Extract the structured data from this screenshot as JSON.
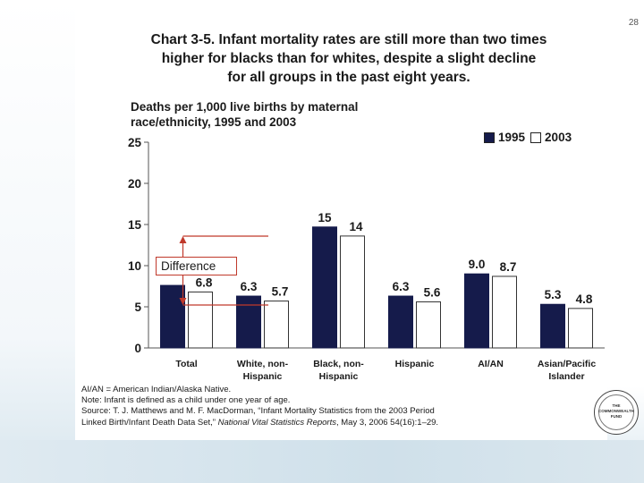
{
  "page_number": "28",
  "title_lines": [
    "Chart 3-5. Infant mortality rates are still more than two times",
    "higher for blacks than for whites, despite a slight decline",
    "for all groups in the past eight years."
  ],
  "subtitle_lines": [
    "Deaths per 1,000 live births by maternal",
    "race/ethnicity, 1995 and 2003"
  ],
  "annotation": {
    "label": "Difference"
  },
  "footnotes": {
    "abbrev": "AI/AN = American Indian/Alaska Native.",
    "note": "Note: Infant is defined as a child under one year of age.",
    "source_line1": "Source: T. J. Matthews and M. F. MacDorman, “Infant Mortality Statistics from the 2003 Period",
    "source_line2_pre": "Linked Birth/Infant Death Data Set,” ",
    "source_line2_journal": "National Vital Statistics Reports",
    "source_line2_post": ", May 3, 2006 54(16):1–29."
  },
  "seal_text": [
    "THE",
    "COMMONWEALTH",
    "FUND"
  ],
  "colors": {
    "dark_bar": "#151b4b",
    "light_bar": "#ffffff",
    "annotation": "#c0392b"
  },
  "chart_data": {
    "type": "bar",
    "categories": [
      [
        "Total"
      ],
      [
        "White, non-",
        "Hispanic"
      ],
      [
        "Black, non-",
        "Hispanic"
      ],
      [
        "Hispanic"
      ],
      [
        "AI/AN"
      ],
      [
        "Asian/Pacific",
        "Islander"
      ]
    ],
    "series": [
      {
        "name": "1995",
        "values": [
          7.6,
          6.3,
          14.7,
          6.3,
          9.0,
          5.3
        ],
        "labels": [
          "",
          "6.3",
          "15",
          "6.3",
          "9.0",
          "5.3"
        ]
      },
      {
        "name": "2003",
        "values": [
          6.8,
          5.7,
          13.6,
          5.6,
          8.7,
          4.8
        ],
        "labels": [
          "6.8",
          "5.7",
          "14",
          "5.6",
          "8.7",
          "4.8"
        ]
      }
    ],
    "ylim": [
      0,
      25
    ],
    "yticks": [
      0,
      5,
      10,
      15,
      20,
      25
    ],
    "title": "Deaths per 1,000 live births by maternal race/ethnicity, 1995 and 2003",
    "legend": [
      "1995",
      "2003"
    ]
  }
}
